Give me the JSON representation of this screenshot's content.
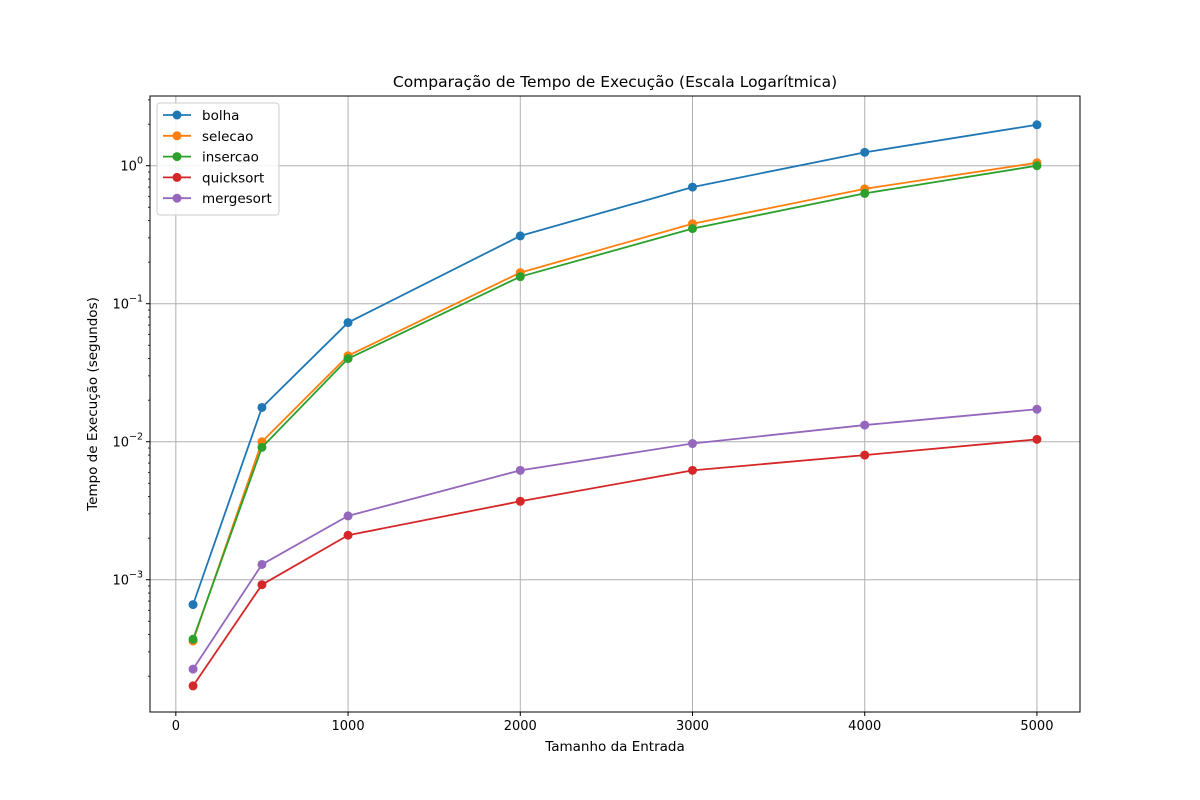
{
  "chart_data": {
    "type": "line",
    "title": "Comparação de Tempo de Execução (Escala Logarítmica)",
    "xlabel": "Tamanho da Entrada",
    "ylabel": "Tempo de Execução (segundos)",
    "x_scale": "linear",
    "y_scale": "log",
    "xlim": [
      -150,
      5250
    ],
    "ylim": [
      0.00011,
      3.2
    ],
    "x_ticks": [
      0,
      1000,
      2000,
      3000,
      4000,
      5000
    ],
    "x_tick_labels": [
      "0",
      "1000",
      "2000",
      "3000",
      "4000",
      "5000"
    ],
    "y_ticks": [
      0.001,
      0.01,
      0.1,
      1
    ],
    "y_tick_labels": [
      {
        "base": "10",
        "exp": "−3"
      },
      {
        "base": "10",
        "exp": "−2"
      },
      {
        "base": "10",
        "exp": "−1"
      },
      {
        "base": "10",
        "exp": "0"
      }
    ],
    "grid": true,
    "legend_position": "upper-left",
    "x": [
      100,
      500,
      1000,
      2000,
      3000,
      4000,
      5000
    ],
    "series": [
      {
        "name": "bolha",
        "color": "#1f77b4",
        "values": [
          0.00066,
          0.0177,
          0.073,
          0.31,
          0.7,
          1.25,
          1.98
        ]
      },
      {
        "name": "selecao",
        "color": "#ff7f0e",
        "values": [
          0.00036,
          0.01,
          0.042,
          0.168,
          0.38,
          0.68,
          1.05
        ]
      },
      {
        "name": "insercao",
        "color": "#2ca02c",
        "values": [
          0.00037,
          0.0091,
          0.04,
          0.157,
          0.35,
          0.63,
          1.0
        ]
      },
      {
        "name": "quicksort",
        "color": "#d62728",
        "values": [
          0.00017,
          0.00092,
          0.0021,
          0.0037,
          0.0062,
          0.008,
          0.0104
        ]
      },
      {
        "name": "mergesort",
        "color": "#9467bd",
        "values": [
          0.000225,
          0.00129,
          0.0029,
          0.0062,
          0.0097,
          0.0132,
          0.0172
        ]
      }
    ]
  }
}
